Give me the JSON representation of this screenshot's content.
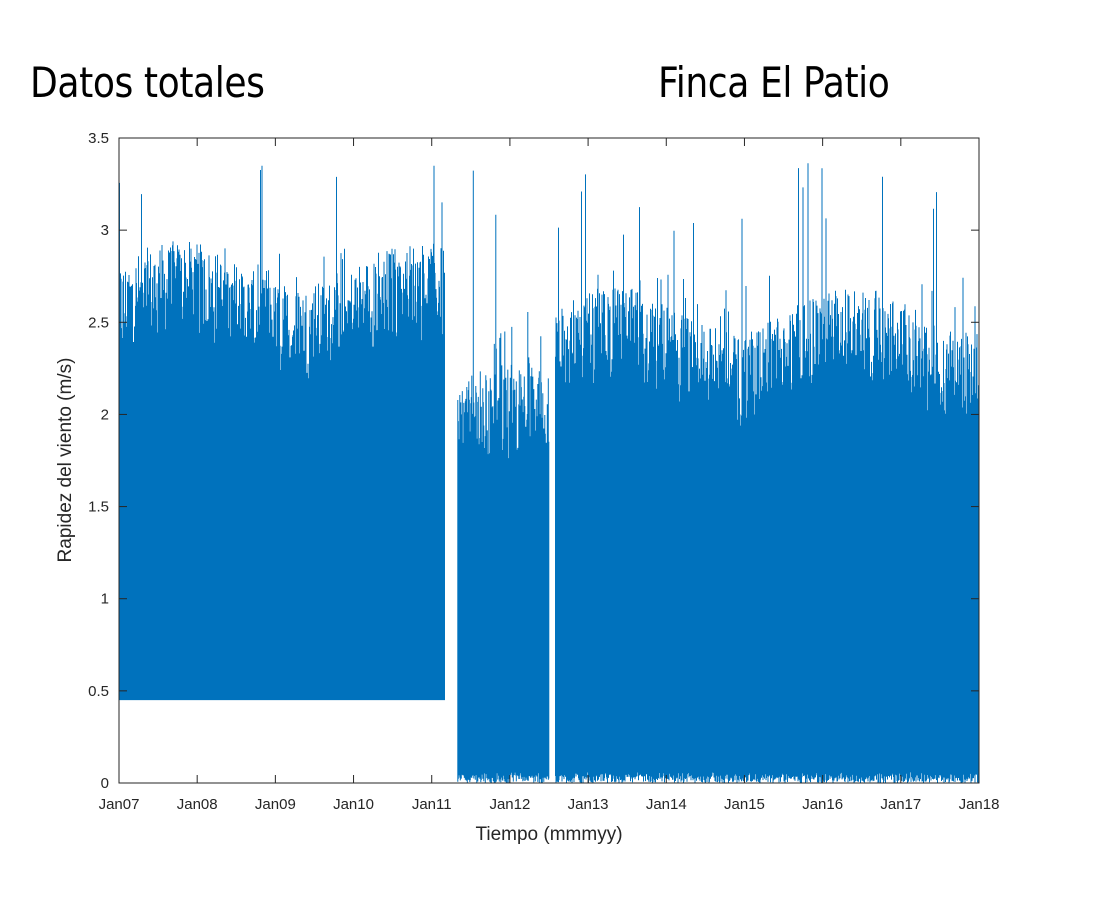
{
  "header": {
    "left_title": "Datos totales",
    "right_title": "Finca El Patio"
  },
  "chart_data": {
    "type": "line",
    "title": "",
    "xlabel": "Tiempo (mmmyy)",
    "ylabel": "Rapidez del viento (m/s)",
    "xlim": [
      "Jan07",
      "Jan18"
    ],
    "ylim": [
      0,
      3.5
    ],
    "x_ticks": [
      "Jan07",
      "Jan08",
      "Jan09",
      "Jan10",
      "Jan11",
      "Jan12",
      "Jan13",
      "Jan14",
      "Jan15",
      "Jan16",
      "Jan17",
      "Jan18"
    ],
    "y_ticks": [
      "0",
      "0.5",
      "1",
      "1.5",
      "2",
      "2.5",
      "3",
      "3.5"
    ],
    "series_color": "#0072BD",
    "grid": false,
    "series": [
      {
        "segments": [
          {
            "start": "Jan07",
            "end": "Mar11",
            "min": 0.45,
            "typical_max": 2.55,
            "peak_max": 3.36
          },
          {
            "start": "May11",
            "end": "Jul12",
            "min": 0.0,
            "typical_max": 1.9,
            "peak_max": 3.44
          },
          {
            "start": "Aug12",
            "end": "Jan18",
            "min": 0.0,
            "typical_max": 2.3,
            "peak_max": 3.42
          }
        ]
      }
    ]
  }
}
